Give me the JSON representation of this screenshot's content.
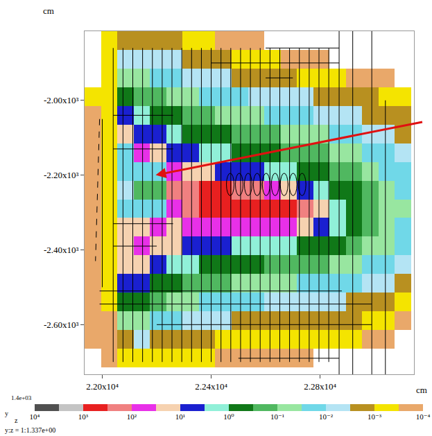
{
  "chart_data": {
    "type": "heatmap",
    "x_label": "cm",
    "y_label": "cm",
    "log": true,
    "grid": false,
    "x": [
      21965,
      22025,
      22085,
      22145,
      22205,
      22265,
      22325,
      22385,
      22445,
      22505,
      22565,
      22625,
      22685,
      22745,
      22805,
      22865,
      22925,
      22985,
      23045,
      23105
    ],
    "y": [
      -1840,
      -1890,
      -1940,
      -1990,
      -2040,
      -2090,
      -2140,
      -2190,
      -2240,
      -2290,
      -2340,
      -2390,
      -2440,
      -2490,
      -2540,
      -2590,
      -2640,
      -2690
    ],
    "cells": [
      [
        null,
        0.0006,
        0.002,
        0.002,
        0.002,
        0.002,
        0.0006,
        0.0006,
        0.0002,
        0.0002,
        0.0002,
        null,
        null,
        null,
        null,
        null,
        null,
        null,
        null,
        null
      ],
      [
        null,
        0.0006,
        0.006,
        0.006,
        0.006,
        0.006,
        0.002,
        0.002,
        0.002,
        0.0006,
        0.0006,
        0.0006,
        0.0002,
        0.0002,
        0.0002,
        null,
        null,
        null,
        null,
        null
      ],
      [
        null,
        0.0006,
        0.06,
        0.06,
        0.02,
        0.02,
        0.006,
        0.006,
        0.006,
        0.002,
        0.002,
        0.002,
        0.002,
        0.0006,
        0.0006,
        0.0006,
        0.0002,
        0.0002,
        0.0002,
        null
      ],
      [
        0.0006,
        0.0006,
        0.6,
        0.2,
        0.2,
        0.06,
        0.06,
        0.02,
        0.02,
        0.02,
        0.006,
        0.006,
        0.006,
        0.006,
        0.002,
        0.002,
        0.002,
        0.002,
        0.0006,
        0.0006
      ],
      [
        0.0002,
        0.0006,
        6,
        2,
        0.6,
        0.6,
        0.2,
        0.2,
        0.06,
        0.06,
        0.06,
        0.02,
        0.02,
        0.02,
        0.006,
        0.006,
        0.006,
        0.002,
        0.002,
        0.002
      ],
      [
        0.0002,
        0.0006,
        20,
        6,
        6,
        2,
        0.6,
        0.6,
        0.6,
        0.2,
        0.2,
        0.2,
        0.06,
        0.06,
        0.06,
        0.02,
        0.02,
        0.006,
        0.006,
        0.002
      ],
      [
        0.0002,
        0.0006,
        0.02,
        60,
        20,
        6,
        6,
        2,
        2,
        0.6,
        0.6,
        0.6,
        0.2,
        0.2,
        0.2,
        0.06,
        0.06,
        0.02,
        0.02,
        0.006
      ],
      [
        0.0002,
        0.0006,
        0.02,
        0.02,
        0.02,
        60,
        20,
        20,
        6,
        6,
        6,
        2,
        2,
        0.6,
        0.6,
        0.2,
        0.2,
        0.06,
        0.02,
        0.02
      ],
      [
        0.0002,
        0.0006,
        0.006,
        0.2,
        0.2,
        200,
        200,
        600,
        600,
        200,
        200,
        60,
        20,
        6,
        2,
        0.6,
        0.6,
        0.2,
        0.06,
        0.02
      ],
      [
        0.0002,
        0.0006,
        0.02,
        0.02,
        0.02,
        60,
        200,
        600,
        600,
        600,
        600,
        600,
        600,
        200,
        20,
        2,
        0.6,
        0.2,
        0.06,
        0.06
      ],
      [
        0.0002,
        0.0006,
        20,
        20,
        60,
        20,
        60,
        60,
        60,
        60,
        60,
        60,
        60,
        20,
        6,
        2,
        0.6,
        0.2,
        0.06,
        0.02
      ],
      [
        0.0002,
        0.0006,
        20,
        60,
        20,
        20,
        6,
        6,
        6,
        2,
        2,
        2,
        2,
        0.6,
        0.6,
        0.6,
        0.2,
        0.06,
        0.06,
        0.02
      ],
      [
        0.0002,
        0.0006,
        20,
        20,
        6,
        2,
        2,
        0.6,
        0.6,
        0.6,
        0.6,
        0.2,
        0.2,
        0.2,
        0.2,
        0.06,
        0.06,
        0.02,
        0.02,
        0.006
      ],
      [
        0.0002,
        0.0006,
        6,
        6,
        0.6,
        0.6,
        0.2,
        0.2,
        0.2,
        0.06,
        0.06,
        0.06,
        0.06,
        0.02,
        0.02,
        0.02,
        0.02,
        0.006,
        0.006,
        0.002
      ],
      [
        0.0002,
        0.0006,
        0.6,
        0.6,
        0.2,
        0.06,
        0.06,
        0.02,
        0.02,
        0.02,
        0.02,
        0.006,
        0.006,
        0.006,
        0.006,
        0.006,
        0.002,
        0.002,
        0.002,
        0.0006
      ],
      [
        0.0002,
        0.0002,
        0.06,
        0.06,
        0.02,
        0.02,
        0.006,
        0.006,
        0.006,
        0.002,
        0.002,
        0.002,
        0.002,
        0.002,
        0.002,
        0.002,
        0.002,
        0.0006,
        0.0006,
        0.0002
      ],
      [
        0.0002,
        0.0002,
        0.002,
        0.006,
        0.002,
        0.002,
        0.002,
        0.002,
        0.0006,
        0.0006,
        0.0006,
        0.0006,
        0.0006,
        0.0006,
        0.0006,
        0.0006,
        0.0006,
        0.0002,
        0.0002,
        null
      ],
      [
        null,
        0.0002,
        0.0006,
        0.0006,
        0.0006,
        0.0006,
        0.0006,
        0.0006,
        0.0002,
        0.0002,
        0.0002,
        0.0002,
        0.0002,
        0.0002,
        null,
        null,
        null,
        null,
        null,
        null
      ]
    ],
    "xlim": [
      21935,
      23145
    ],
    "ylim": [
      -2733,
      -1815
    ],
    "xticks": [
      {
        "value": 22000,
        "label": "2.20x10⁴"
      },
      {
        "value": 22400,
        "label": "2.24x10⁴"
      },
      {
        "value": 22800,
        "label": "2.28x10⁴"
      }
    ],
    "yticks": [
      {
        "value": -2000,
        "label": "-2.00x10³"
      },
      {
        "value": -2200,
        "label": "-2.20x10³"
      },
      {
        "value": -2400,
        "label": "-2.40x10³"
      },
      {
        "value": -2600,
        "label": "-2.60x10³"
      }
    ],
    "colorbar": {
      "range": [
        10000,
        0.0001
      ],
      "ticks": [
        {
          "value": 10000,
          "label": "10⁴"
        },
        {
          "value": 1000,
          "label": "10³"
        },
        {
          "value": 100,
          "label": "10²"
        },
        {
          "value": 10,
          "label": "10¹"
        },
        {
          "value": 1,
          "label": "10⁰"
        },
        {
          "value": 0.1,
          "label": "10⁻¹"
        },
        {
          "value": 0.01,
          "label": "10⁻²"
        },
        {
          "value": 0.001,
          "label": "10⁻³"
        },
        {
          "value": 0.0001,
          "label": "10⁻⁴"
        }
      ],
      "max_label": "1.4e+03"
    },
    "annotations": [
      "y",
      "z",
      "y:z = 1:1.337e+00"
    ]
  }
}
